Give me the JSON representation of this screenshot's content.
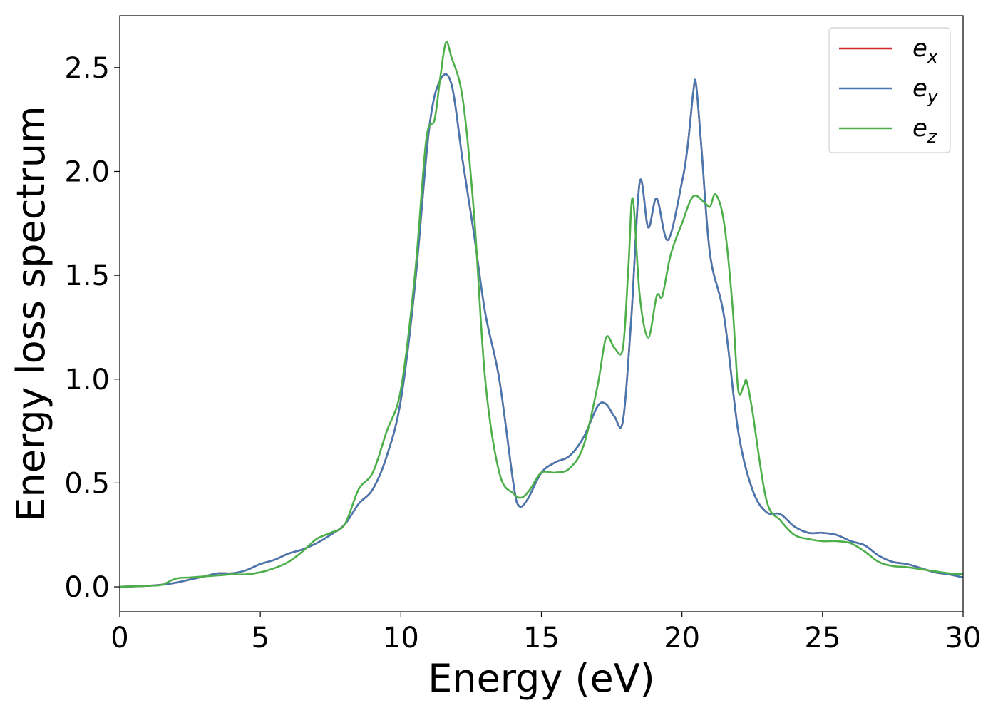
{
  "chart_data": {
    "type": "line",
    "xlabel": "Energy (eV)",
    "ylabel": "Energy loss spectrum",
    "xlim": [
      0,
      30
    ],
    "ylim": [
      -0.12,
      2.75
    ],
    "xticks": [
      0,
      5,
      10,
      15,
      20,
      25,
      30
    ],
    "xtick_labels": [
      "0",
      "5",
      "10",
      "15",
      "20",
      "25",
      "30"
    ],
    "yticks": [
      0.0,
      0.5,
      1.0,
      1.5,
      2.0,
      2.5
    ],
    "ytick_labels": [
      "0.0",
      "0.5",
      "1.0",
      "1.5",
      "2.0",
      "2.5"
    ],
    "grid": false,
    "legend_position": "top-right",
    "series": [
      {
        "name": "e",
        "subscript": "x",
        "color": "#d62728",
        "x": [
          0,
          1,
          1.5,
          2,
          2.5,
          3,
          3.5,
          4,
          4.5,
          5,
          5.5,
          6,
          6.5,
          7,
          7.5,
          8,
          8.5,
          9,
          9.5,
          10,
          10.5,
          11,
          11.4,
          11.8,
          12.2,
          12.6,
          13,
          13.5,
          14,
          14.2,
          14.5,
          15,
          15.5,
          16,
          16.5,
          17,
          17.3,
          17.6,
          17.9,
          18.2,
          18.5,
          18.8,
          19.1,
          19.5,
          20,
          20.2,
          20.4,
          20.5,
          20.7,
          21,
          21.5,
          22,
          22.5,
          23,
          23.5,
          24,
          24.5,
          25,
          25.5,
          26,
          26.5,
          27,
          27.5,
          28,
          28.5,
          29,
          29.5,
          30
        ],
        "y": [
          0,
          0.005,
          0.01,
          0.02,
          0.035,
          0.05,
          0.065,
          0.065,
          0.08,
          0.11,
          0.13,
          0.16,
          0.18,
          0.21,
          0.25,
          0.3,
          0.4,
          0.47,
          0.63,
          0.9,
          1.45,
          2.2,
          2.44,
          2.42,
          2.05,
          1.7,
          1.32,
          1.0,
          0.5,
          0.39,
          0.42,
          0.55,
          0.6,
          0.63,
          0.72,
          0.87,
          0.88,
          0.82,
          0.8,
          1.3,
          1.95,
          1.73,
          1.87,
          1.67,
          1.95,
          2.12,
          2.38,
          2.42,
          2.1,
          1.6,
          1.3,
          0.75,
          0.47,
          0.36,
          0.35,
          0.29,
          0.26,
          0.26,
          0.25,
          0.22,
          0.2,
          0.15,
          0.12,
          0.11,
          0.09,
          0.07,
          0.06,
          0.045
        ]
      },
      {
        "name": "e",
        "subscript": "y",
        "color": "#4878b0",
        "x": [
          0,
          1,
          1.5,
          2,
          2.5,
          3,
          3.5,
          4,
          4.5,
          5,
          5.5,
          6,
          6.5,
          7,
          7.5,
          8,
          8.5,
          9,
          9.5,
          10,
          10.5,
          11,
          11.4,
          11.8,
          12.2,
          12.6,
          13,
          13.5,
          14,
          14.2,
          14.5,
          15,
          15.5,
          16,
          16.5,
          17,
          17.3,
          17.6,
          17.9,
          18.2,
          18.5,
          18.8,
          19.1,
          19.5,
          20,
          20.2,
          20.4,
          20.5,
          20.7,
          21,
          21.5,
          22,
          22.5,
          23,
          23.5,
          24,
          24.5,
          25,
          25.5,
          26,
          26.5,
          27,
          27.5,
          28,
          28.5,
          29,
          29.5,
          30
        ],
        "y": [
          0,
          0.005,
          0.01,
          0.02,
          0.035,
          0.05,
          0.065,
          0.065,
          0.08,
          0.11,
          0.13,
          0.16,
          0.18,
          0.21,
          0.25,
          0.3,
          0.4,
          0.47,
          0.63,
          0.9,
          1.45,
          2.2,
          2.44,
          2.42,
          2.05,
          1.7,
          1.32,
          1.0,
          0.5,
          0.39,
          0.42,
          0.55,
          0.6,
          0.63,
          0.72,
          0.87,
          0.88,
          0.82,
          0.8,
          1.3,
          1.95,
          1.73,
          1.87,
          1.67,
          1.95,
          2.12,
          2.38,
          2.42,
          2.1,
          1.6,
          1.3,
          0.75,
          0.47,
          0.36,
          0.35,
          0.29,
          0.26,
          0.26,
          0.25,
          0.22,
          0.2,
          0.15,
          0.12,
          0.11,
          0.09,
          0.07,
          0.06,
          0.045
        ]
      },
      {
        "name": "e",
        "subscript": "z",
        "color": "#4daf4a",
        "x": [
          0,
          1,
          1.5,
          2,
          2.5,
          3,
          3.5,
          4,
          4.5,
          5,
          5.5,
          6,
          6.5,
          7,
          7.5,
          8,
          8.5,
          9,
          9.5,
          10,
          10.5,
          10.9,
          11.2,
          11.4,
          11.6,
          11.8,
          12.2,
          12.6,
          13,
          13.5,
          14,
          14.3,
          14.6,
          15,
          15.5,
          16,
          16.5,
          17,
          17.3,
          17.6,
          17.9,
          18.1,
          18.25,
          18.5,
          18.8,
          19.1,
          19.3,
          19.6,
          20,
          20.4,
          20.8,
          21,
          21.2,
          21.5,
          21.8,
          22,
          22.2,
          22.3,
          22.5,
          23,
          23.5,
          24,
          24.5,
          25,
          25.5,
          26,
          26.5,
          27,
          27.5,
          28,
          28.5,
          29,
          29.5,
          30
        ],
        "y": [
          0,
          0.005,
          0.01,
          0.04,
          0.045,
          0.05,
          0.055,
          0.06,
          0.06,
          0.07,
          0.09,
          0.12,
          0.17,
          0.23,
          0.26,
          0.3,
          0.47,
          0.55,
          0.75,
          0.95,
          1.5,
          2.15,
          2.25,
          2.45,
          2.62,
          2.55,
          2.35,
          1.8,
          1.0,
          0.55,
          0.45,
          0.43,
          0.47,
          0.55,
          0.55,
          0.57,
          0.68,
          0.97,
          1.2,
          1.15,
          1.15,
          1.55,
          1.87,
          1.4,
          1.2,
          1.4,
          1.4,
          1.6,
          1.75,
          1.88,
          1.85,
          1.83,
          1.89,
          1.75,
          1.35,
          0.95,
          0.97,
          0.99,
          0.85,
          0.42,
          0.32,
          0.25,
          0.23,
          0.22,
          0.22,
          0.21,
          0.17,
          0.12,
          0.1,
          0.095,
          0.085,
          0.075,
          0.065,
          0.06
        ]
      }
    ]
  }
}
